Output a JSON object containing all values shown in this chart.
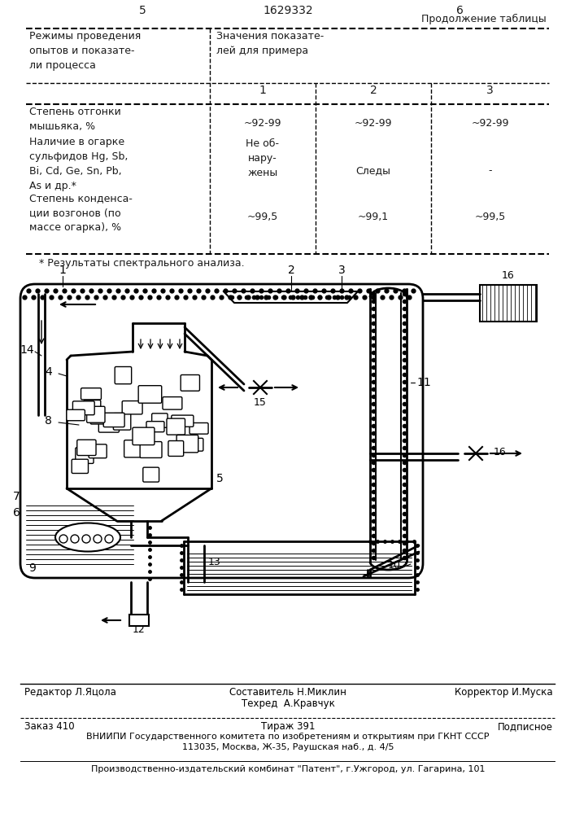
{
  "page_num_left": "5",
  "page_num_right": "6",
  "patent_num": "1629332",
  "table_continuation": "Продолжение таблицы",
  "col_header_left": "Режимы проведения\nопытов и показате-\nли процесса",
  "col_header_right": "Значения показате-\nлей для примера",
  "col_numbers": [
    "1",
    "2",
    "3"
  ],
  "row1_label": "Степень отгонки\nмышьяка, %",
  "row1_vals": [
    "~92-99",
    "~92-99",
    "~92-99"
  ],
  "row2_label": "Наличие в огарке\nсульфидов Hg, Sb,\nBi, Cd, Ge, Sn, Pb,\nAs и др.*",
  "row2_val1": "Не об-\nнару-\nжены",
  "row2_val2": "Следы",
  "row2_val3": "-",
  "row3_label": "Степень конденса-\nции возгонов (по\nмассе огарка), %",
  "row3_vals": [
    "~99,5",
    "~99,1",
    "~99,5"
  ],
  "footnote": "* Результаты спектрального анализа.",
  "editor_line": "Редактор Л.Яцола",
  "composer_line1": "Составитель Н.Миклин",
  "composer_line2": "Техред  А.Кравчук",
  "corrector_line": "Корректор И.Муска",
  "order_line": "Заказ 410",
  "circulation_line": "Тираж 391",
  "subscription_line": "Подписное",
  "vniipp_line": "ВНИИПИ Государственного комитета по изобретениям и открытиям при ГКНТ СССР",
  "address_line": "113035, Москва, Ж-35, Раушская наб., д. 4/5",
  "factory_line": "Производственно-издательский комбинат \"Патент\", г.Ужгород, ул. Гагарина, 101",
  "bg_color": "#ffffff",
  "text_color": "#1a1a1a"
}
